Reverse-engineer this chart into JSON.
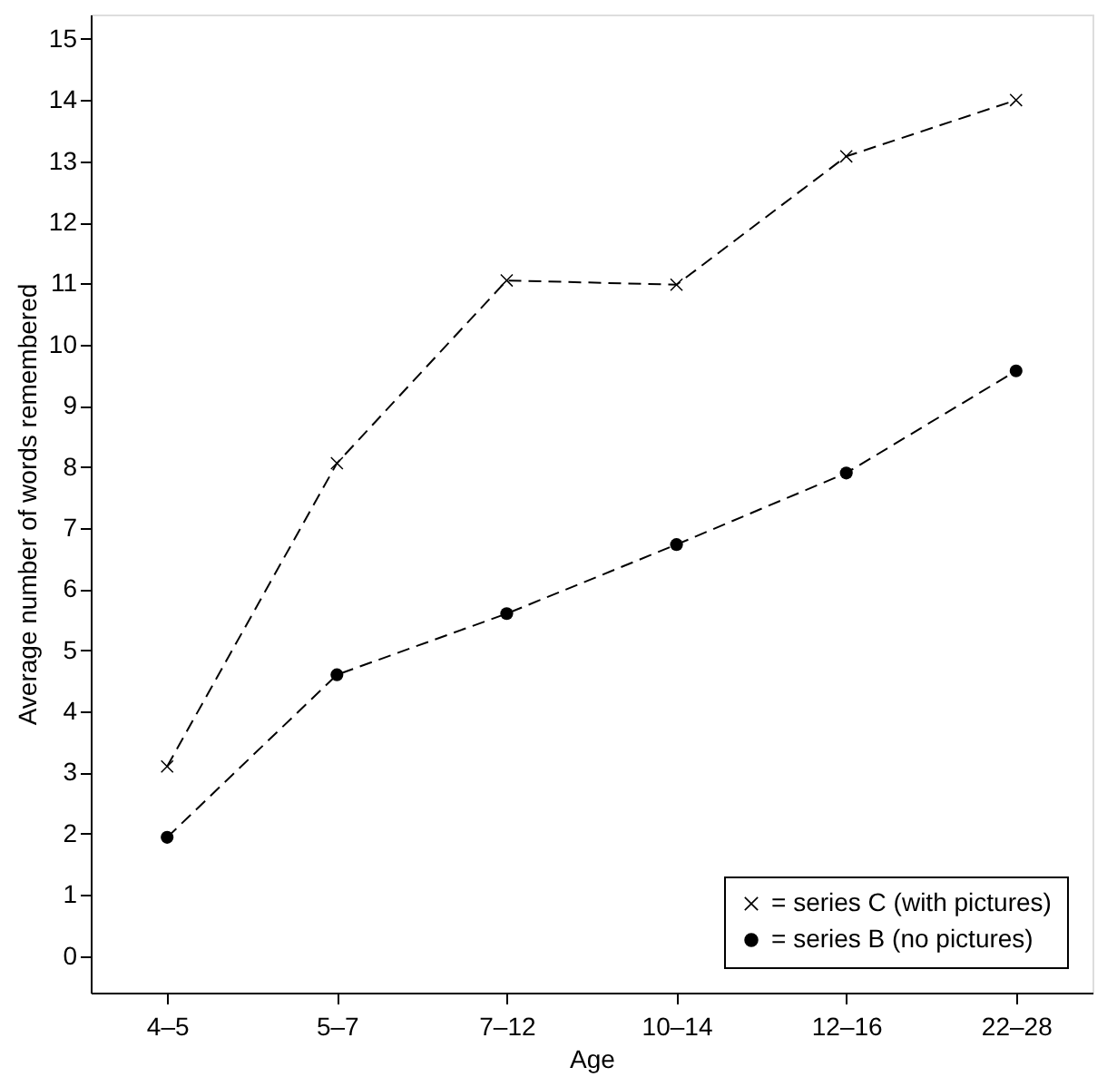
{
  "chart_data": {
    "type": "line",
    "xlabel": "Age",
    "ylabel": "Average number of words remembered",
    "categories": [
      "4–5",
      "5–7",
      "7–12",
      "10–14",
      "12–16",
      "22–28"
    ],
    "series": [
      {
        "name": "= series C (with pictures)",
        "color": "#000000",
        "marker": "cross",
        "line_style": "dashed",
        "values": [
          3.1,
          8.06,
          11.05,
          10.98,
          13.08,
          14.0
        ]
      },
      {
        "name": "= series B (no pictures)",
        "color": "#000000",
        "marker": "circle",
        "line_style": "dashed",
        "values": [
          1.94,
          4.6,
          5.6,
          6.73,
          7.9,
          9.57
        ]
      }
    ],
    "ylim": [
      -0.6,
      15.4
    ],
    "yticks": [
      0,
      1,
      2,
      3,
      4,
      5,
      6,
      7,
      8,
      9,
      10,
      11,
      12,
      13,
      14,
      15
    ],
    "grid": false,
    "legend": "bottom right"
  }
}
